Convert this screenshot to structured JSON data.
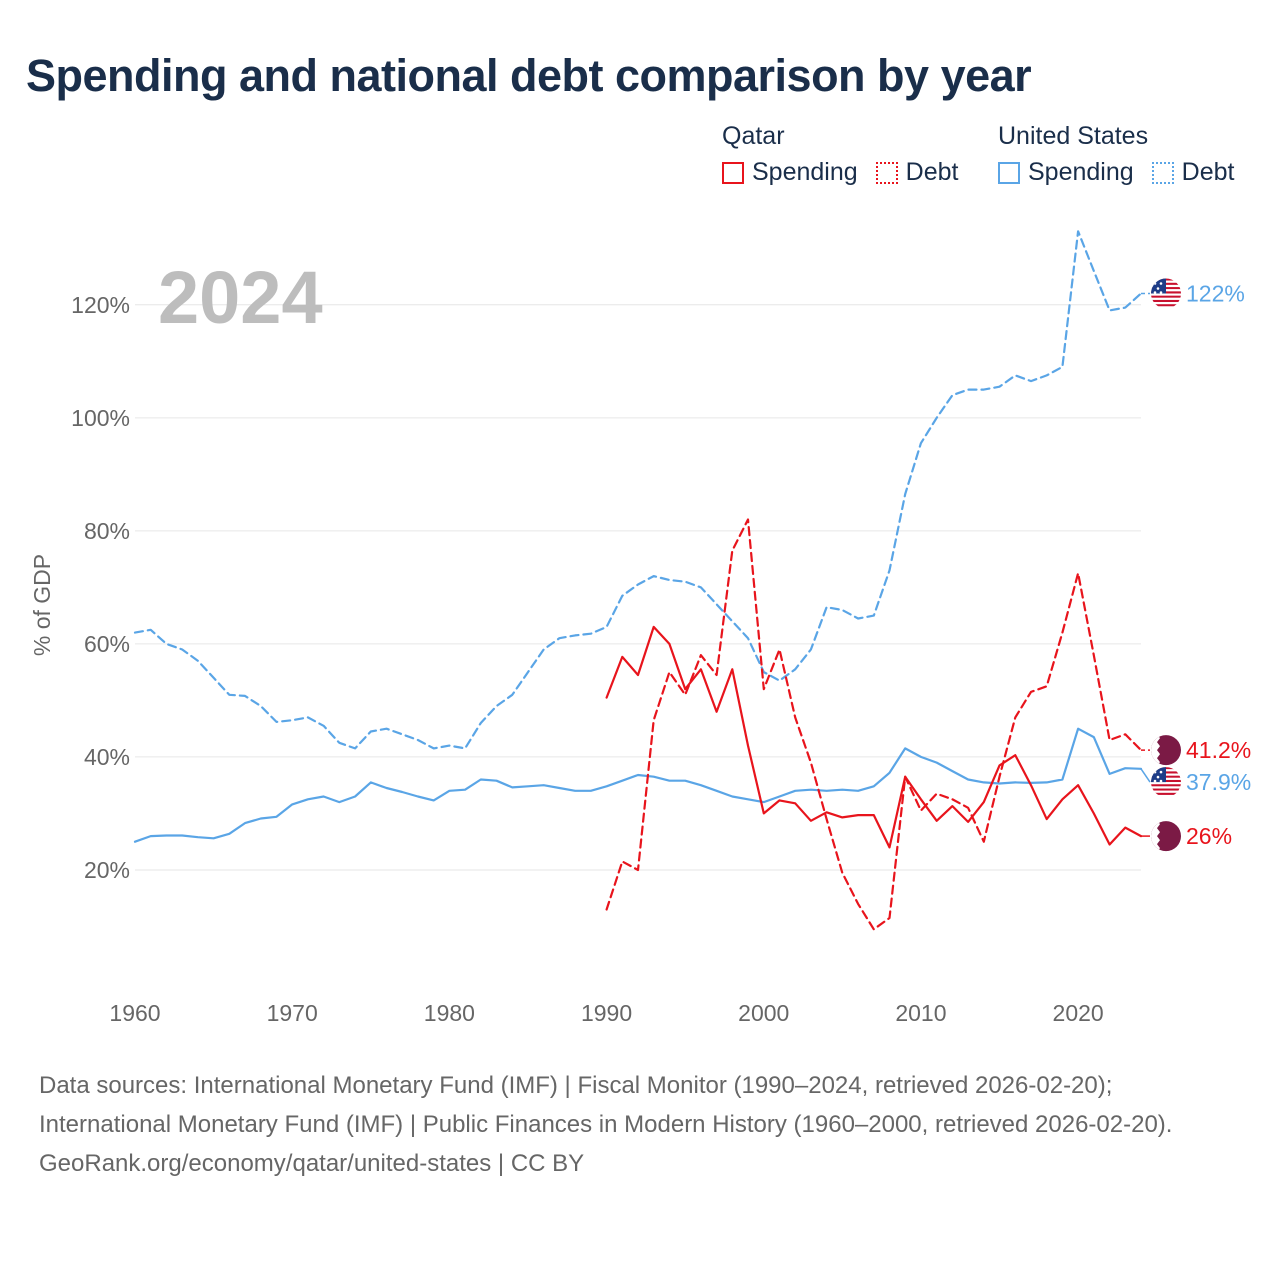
{
  "title": "Spending and national debt comparison by year",
  "legend": {
    "groups": [
      {
        "name": "Qatar",
        "color": "#e8141c",
        "items": [
          "Spending",
          "Debt"
        ]
      },
      {
        "name": "United States",
        "color": "#5aa5e6",
        "items": [
          "Spending",
          "Debt"
        ]
      }
    ]
  },
  "footer": {
    "sources": "Data sources: International Monetary Fund (IMF) | Fiscal Monitor (1990–2024, retrieved 2026-02-20); International Monetary Fund (IMF) | Public Finances in Modern History (1960–2000, retrieved 2026-02-20).",
    "credit": "GeoRank.org/economy/qatar/united-states | CC BY"
  },
  "chart_data": {
    "type": "line",
    "year_label": "2024",
    "ylabel": "% of GDP",
    "xlim": [
      1960,
      2024
    ],
    "ylim": [
      0,
      135
    ],
    "x_ticks": [
      1960,
      1970,
      1980,
      1990,
      2000,
      2010,
      2020
    ],
    "x_tick_labels": [
      "1960",
      "1970",
      "1980",
      "1990",
      "2000",
      "2010",
      "2020"
    ],
    "y_ticks": [
      20,
      40,
      60,
      80,
      100,
      120
    ],
    "y_tick_labels": [
      "20%",
      "40%",
      "60%",
      "80%",
      "100%",
      "120%"
    ],
    "series": [
      {
        "name": "United States Debt",
        "country": "United States",
        "measure": "Debt",
        "color": "#5aa5e6",
        "dashed": true,
        "end_label": "122%",
        "flag": "us",
        "x": [
          1960,
          1961,
          1962,
          1963,
          1964,
          1965,
          1966,
          1967,
          1968,
          1969,
          1970,
          1971,
          1972,
          1973,
          1974,
          1975,
          1976,
          1977,
          1978,
          1979,
          1980,
          1981,
          1982,
          1983,
          1984,
          1985,
          1986,
          1987,
          1988,
          1989,
          1990,
          1991,
          1992,
          1993,
          1994,
          1995,
          1996,
          1997,
          1998,
          1999,
          2000,
          2001,
          2002,
          2003,
          2004,
          2005,
          2006,
          2007,
          2008,
          2009,
          2010,
          2011,
          2012,
          2013,
          2014,
          2015,
          2016,
          2017,
          2018,
          2019,
          2020,
          2021,
          2022,
          2023,
          2024
        ],
        "values": [
          62,
          62.5,
          60,
          59,
          57,
          54,
          51,
          50.8,
          49,
          46.2,
          46.5,
          47,
          45.5,
          42.5,
          41.5,
          44.5,
          45,
          44,
          43,
          41.5,
          42,
          41.5,
          46,
          49,
          51,
          55,
          59,
          61,
          61.5,
          61.8,
          63,
          68.5,
          70.5,
          72,
          71.3,
          71,
          70,
          67,
          64,
          61,
          55,
          53.5,
          55.5,
          59,
          66.5,
          66,
          64.5,
          65,
          73,
          86.5,
          95.5,
          100,
          104,
          105,
          105,
          105.5,
          107.5,
          106.5,
          107.5,
          109,
          133,
          126,
          119,
          119.5,
          122
        ]
      },
      {
        "name": "United States Spending",
        "country": "United States",
        "measure": "Spending",
        "color": "#5aa5e6",
        "dashed": false,
        "end_label": "37.9%",
        "flag": "us",
        "x": [
          1960,
          1961,
          1962,
          1963,
          1964,
          1965,
          1966,
          1967,
          1968,
          1969,
          1970,
          1971,
          1972,
          1973,
          1974,
          1975,
          1976,
          1977,
          1978,
          1979,
          1980,
          1981,
          1982,
          1983,
          1984,
          1985,
          1986,
          1987,
          1988,
          1989,
          1990,
          1991,
          1992,
          1993,
          1994,
          1995,
          1996,
          1997,
          1998,
          1999,
          2000,
          2001,
          2002,
          2003,
          2004,
          2005,
          2006,
          2007,
          2008,
          2009,
          2010,
          2011,
          2012,
          2013,
          2014,
          2015,
          2016,
          2017,
          2018,
          2019,
          2020,
          2021,
          2022,
          2023,
          2024
        ],
        "values": [
          25,
          26,
          26.1,
          26.1,
          25.8,
          25.6,
          26.4,
          28.3,
          29.1,
          29.4,
          31.6,
          32.5,
          33,
          32,
          33,
          35.5,
          34.5,
          33.8,
          33,
          32.3,
          34,
          34.2,
          36,
          35.8,
          34.6,
          34.8,
          35,
          34.5,
          34,
          34,
          34.8,
          35.8,
          36.8,
          36.5,
          35.8,
          35.8,
          35,
          34,
          33,
          32.5,
          32,
          33,
          34,
          34.2,
          34,
          34.2,
          34,
          34.8,
          37.2,
          41.5,
          40,
          39,
          37.5,
          36,
          35.5,
          35.3,
          35.5,
          35.4,
          35.5,
          36,
          45,
          43.5,
          37,
          38,
          37.9
        ]
      },
      {
        "name": "Qatar Debt",
        "country": "Qatar",
        "measure": "Debt",
        "color": "#e8141c",
        "dashed": true,
        "end_label": "41.2%",
        "flag": "qa",
        "x": [
          1990,
          1991,
          1992,
          1993,
          1994,
          1995,
          1996,
          1997,
          1998,
          1999,
          2000,
          2001,
          2002,
          2003,
          2004,
          2005,
          2006,
          2007,
          2008,
          2009,
          2010,
          2011,
          2012,
          2013,
          2014,
          2015,
          2016,
          2017,
          2018,
          2019,
          2020,
          2021,
          2022,
          2023,
          2024
        ],
        "values": [
          13,
          21.5,
          20,
          46.5,
          55,
          51,
          58,
          54.5,
          76.5,
          82,
          52,
          59,
          47,
          39,
          29,
          19.5,
          14,
          9.5,
          11.5,
          36.5,
          30.5,
          33.5,
          32.5,
          31,
          25,
          36.5,
          47,
          51.5,
          52.5,
          62,
          72.5,
          58,
          43,
          44,
          41.2
        ]
      },
      {
        "name": "Qatar Spending",
        "country": "Qatar",
        "measure": "Spending",
        "color": "#e8141c",
        "dashed": false,
        "end_label": "26%",
        "flag": "qa",
        "x": [
          1990,
          1991,
          1992,
          1993,
          1994,
          1995,
          1996,
          1997,
          1998,
          1999,
          2000,
          2001,
          2002,
          2003,
          2004,
          2005,
          2006,
          2007,
          2008,
          2009,
          2010,
          2011,
          2012,
          2013,
          2014,
          2015,
          2016,
          2017,
          2018,
          2019,
          2020,
          2021,
          2022,
          2023,
          2024
        ],
        "values": [
          50.5,
          57.7,
          54.5,
          63,
          60,
          52,
          55.5,
          48,
          55.5,
          42,
          30,
          32.3,
          31.8,
          28.7,
          30.2,
          29.3,
          29.7,
          29.7,
          24,
          36.5,
          32.5,
          28.7,
          31.3,
          28.5,
          32,
          38.5,
          40.3,
          35,
          29,
          32.5,
          35,
          30,
          24.5,
          27.5,
          26
        ]
      }
    ]
  }
}
